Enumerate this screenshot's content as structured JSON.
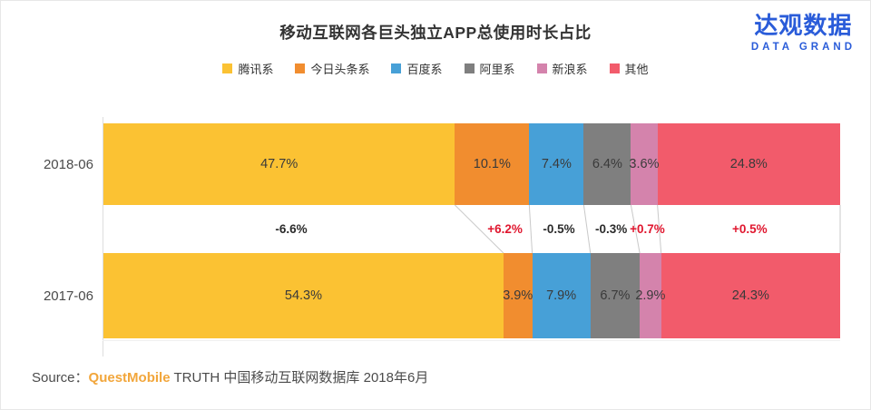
{
  "header": {
    "title": "移动互联网各巨头独立APP总使用时长占比"
  },
  "logo": {
    "cn": "达观数据",
    "en": "DATA GRAND",
    "color": "#2A5CD9"
  },
  "source": {
    "label": "Source：",
    "brand": "QuestMobile",
    "rest": " TRUTH 中国移动互联网数据库 2018年6月",
    "brand_color": "#F2A63B"
  },
  "chart_data": {
    "type": "bar",
    "variant": "horizontal-stacked-100",
    "title": "移动互联网各巨头独立APP总使用时长占比",
    "unit": "%",
    "value_suffix": "%",
    "xlim": [
      0,
      100
    ],
    "legend_position": "top-center",
    "grid": false,
    "categories": [
      "2018-06",
      "2017-06"
    ],
    "series": [
      {
        "name": "腾讯系",
        "color": "#FBC233",
        "values": [
          47.7,
          54.3
        ],
        "change": "-6.6%"
      },
      {
        "name": "今日头条系",
        "color": "#F18D2F",
        "values": [
          10.1,
          3.9
        ],
        "change": "+6.2%"
      },
      {
        "name": "百度系",
        "color": "#47A0D7",
        "values": [
          7.4,
          7.9
        ],
        "change": "-0.5%"
      },
      {
        "name": "阿里系",
        "color": "#7F7F7F",
        "values": [
          6.4,
          6.7
        ],
        "change": "-0.3%"
      },
      {
        "name": "新浪系",
        "color": "#D483AC",
        "values": [
          3.6,
          2.9
        ],
        "change": "+0.7%"
      },
      {
        "name": "其他",
        "color": "#F25B6B",
        "values": [
          24.8,
          24.3
        ],
        "change": "+0.5%"
      }
    ],
    "change_positive_color": "#E0172F",
    "change_negative_color": "#2B2B2B",
    "label_color": "#3A3A3A"
  }
}
